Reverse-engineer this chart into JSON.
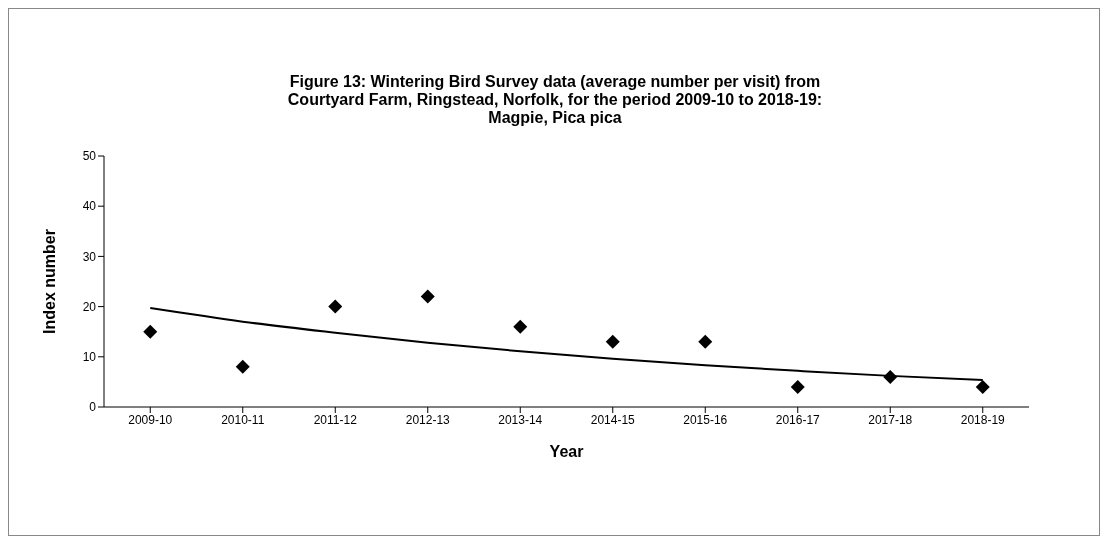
{
  "chart_data": {
    "type": "scatter",
    "title": "Figure 13: Wintering Bird Survey data (average number per visit) from\nCourtyard Farm, Ringstead, Norfolk, for the period 2009-10 to 2018-19:\nMagpie, Pica pica",
    "xlabel": "Year",
    "ylabel": "Index number",
    "categories": [
      "2009-10",
      "2010-11",
      "2011-12",
      "2012-13",
      "2013-14",
      "2014-15",
      "2015-16",
      "2016-17",
      "2017-18",
      "2018-19"
    ],
    "series": [
      {
        "color": "#000000",
        "marker": "diamond",
        "values": [
          15,
          8,
          20,
          22,
          16,
          13,
          13,
          4,
          6,
          4
        ]
      },
      {
        "type": "line",
        "color": "#000000",
        "line_style": "solid",
        "marker": "none",
        "values": [
          19.7,
          17.0,
          14.8,
          12.8,
          11.1,
          9.6,
          8.3,
          7.2,
          6.2,
          5.4
        ]
      }
    ],
    "ylim": [
      0,
      50
    ],
    "yticks": [
      0,
      10,
      20,
      30,
      40,
      50
    ],
    "grid": false,
    "legend": false
  }
}
